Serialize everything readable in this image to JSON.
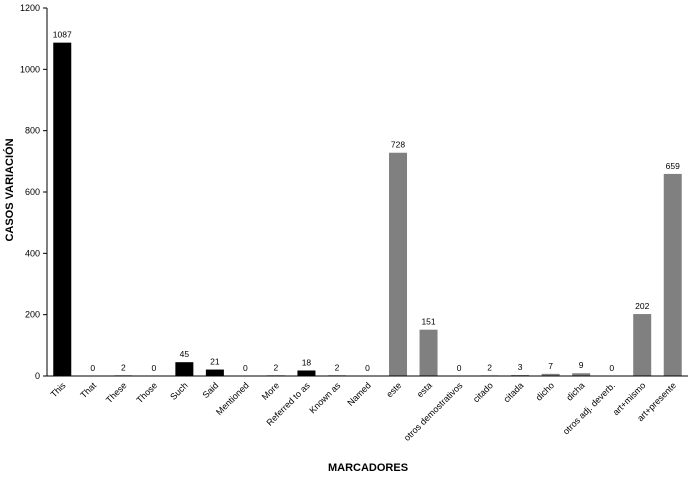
{
  "chart_data": {
    "type": "bar",
    "title": "",
    "xlabel": "MARCADORES",
    "ylabel": "CASOS VARIACIÓN",
    "ylim": [
      0,
      1200
    ],
    "yticks": [
      "0",
      "200",
      "400",
      "600",
      "800",
      "1000",
      "1200"
    ],
    "grid": false,
    "categories": [
      "This",
      "That",
      "These",
      "Those",
      "Such",
      "Said",
      "Mentioned",
      "More",
      "Referred to as",
      "Known as",
      "Named",
      "este",
      "esta",
      "otros demostrativos",
      "citado",
      "citada",
      "dicho",
      "dicha",
      "otros adj. deverb.",
      "art+mismo",
      "art+presente"
    ],
    "values": [
      1087,
      0,
      2,
      0,
      45,
      21,
      0,
      2,
      18,
      2,
      0,
      728,
      151,
      0,
      2,
      3,
      7,
      9,
      0,
      202,
      659
    ],
    "data_labels": [
      "1087",
      "0",
      "2",
      "0",
      "45",
      "21",
      "0",
      "2",
      "18",
      "2",
      "0",
      "728",
      "151",
      "0",
      "2",
      "3",
      "7",
      "9",
      "0",
      "202",
      "659"
    ],
    "bar_colors": [
      "#000000",
      "#000000",
      "#000000",
      "#000000",
      "#000000",
      "#000000",
      "#000000",
      "#000000",
      "#000000",
      "#000000",
      "#000000",
      "#808080",
      "#808080",
      "#808080",
      "#808080",
      "#808080",
      "#808080",
      "#808080",
      "#808080",
      "#808080",
      "#808080"
    ]
  }
}
